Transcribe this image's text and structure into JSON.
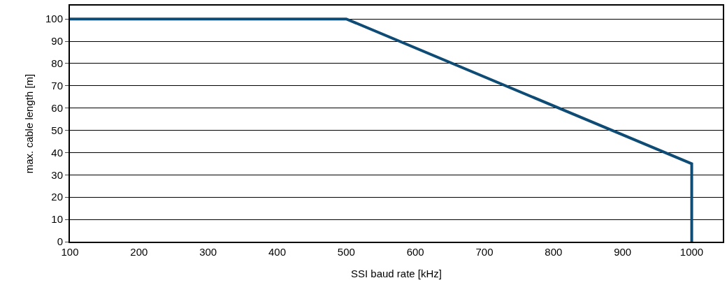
{
  "chart_data": {
    "type": "line",
    "xlabel": "SSI baud rate [kHz]",
    "ylabel": "max. cable length [m]",
    "series": [
      {
        "color": "#0f4c75",
        "x": [
          100,
          500,
          1000,
          1000
        ],
        "values": [
          100,
          100,
          35,
          0
        ]
      }
    ],
    "xlim": [
      100,
      1045
    ],
    "xticks": [
      100,
      200,
      300,
      400,
      500,
      600,
      700,
      800,
      900,
      1000
    ],
    "ylim": [
      0,
      106
    ],
    "yticks": [
      0,
      10,
      20,
      30,
      40,
      50,
      60,
      70,
      80,
      90,
      100
    ],
    "grid": "y",
    "marker": "none",
    "line_style": "solid"
  }
}
